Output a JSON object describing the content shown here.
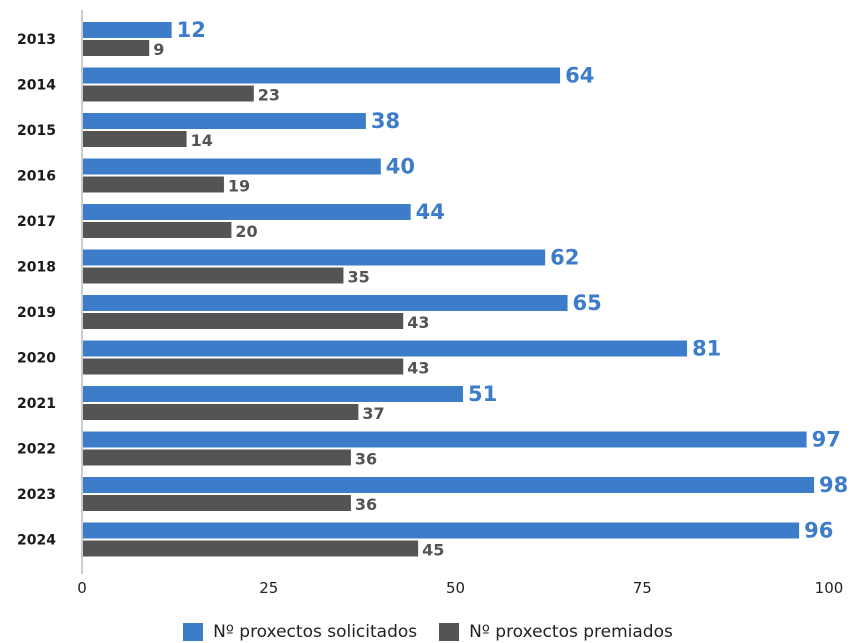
{
  "chart_data": {
    "type": "bar",
    "orientation": "horizontal",
    "categories": [
      "2013",
      "2014",
      "2015",
      "2016",
      "2017",
      "2018",
      "2019",
      "2020",
      "2021",
      "2022",
      "2023",
      "2024"
    ],
    "series": [
      {
        "name": "Nº proxectos solicitados",
        "color": "#3d7cc9",
        "values": [
          12,
          64,
          38,
          40,
          44,
          62,
          65,
          81,
          51,
          97,
          98,
          96
        ]
      },
      {
        "name": "Nº proxectos premiados",
        "color": "#545454",
        "values": [
          9,
          23,
          14,
          19,
          20,
          35,
          43,
          43,
          37,
          36,
          36,
          45
        ]
      }
    ],
    "xlim": [
      0,
      100
    ],
    "xticks": [
      "0",
      "25",
      "50",
      "75",
      "100"
    ],
    "grid": false,
    "legend": "bottom",
    "data_labels": true
  }
}
